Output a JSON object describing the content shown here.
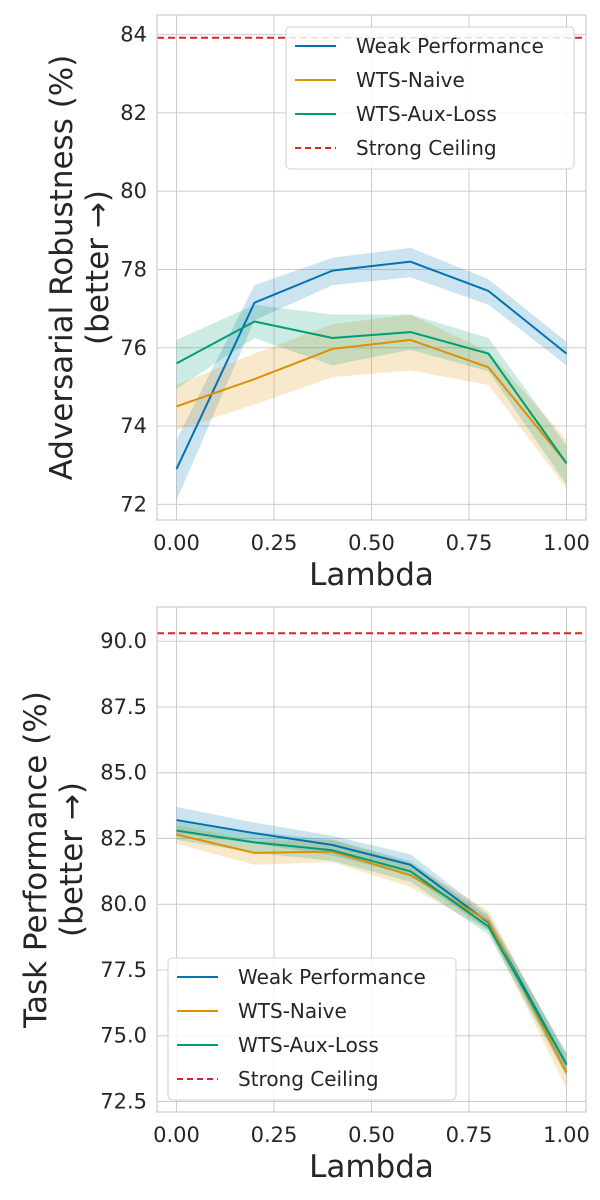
{
  "chart_data": [
    {
      "type": "line",
      "xlabel": "Lambda",
      "ylabel_lines": [
        "Adversarial Robustness (%)",
        "(better →)"
      ],
      "xlim": [
        -0.05,
        1.05
      ],
      "ylim": [
        71.6,
        84.5
      ],
      "xticks": [
        0.0,
        0.25,
        0.5,
        0.75,
        1.0
      ],
      "xtick_labels": [
        "0.00",
        "0.25",
        "0.50",
        "0.75",
        "1.00"
      ],
      "yticks": [
        72,
        74,
        76,
        78,
        80,
        82,
        84
      ],
      "ytick_labels": [
        "72",
        "74",
        "76",
        "78",
        "80",
        "82",
        "84"
      ],
      "grid": true,
      "legend_position": "top-right",
      "x": [
        0.0,
        0.2,
        0.4,
        0.6,
        0.8,
        1.0
      ],
      "series": [
        {
          "name": "Weak Performance",
          "color": "#0173b2",
          "values": [
            72.9,
            77.15,
            77.97,
            78.2,
            77.45,
            75.85
          ],
          "lower": [
            72.1,
            76.7,
            77.6,
            77.8,
            77.1,
            75.55
          ],
          "upper": [
            73.65,
            77.6,
            78.3,
            78.55,
            77.75,
            76.15
          ]
        },
        {
          "name": "WTS-Naive",
          "color": "#de8f05",
          "values": [
            74.5,
            75.2,
            75.97,
            76.2,
            75.5,
            73.05
          ],
          "lower": [
            73.9,
            74.55,
            75.25,
            75.42,
            75.05,
            72.4
          ],
          "upper": [
            75.05,
            75.85,
            76.6,
            76.85,
            75.9,
            73.65
          ]
        },
        {
          "name": "WTS-Aux-Loss",
          "color": "#029e73",
          "values": [
            75.6,
            76.67,
            76.25,
            76.4,
            75.85,
            73.05
          ],
          "lower": [
            74.95,
            76.25,
            75.55,
            75.95,
            75.4,
            72.5
          ],
          "upper": [
            76.2,
            77.1,
            76.85,
            76.85,
            76.25,
            73.5
          ]
        }
      ],
      "reference_lines": [
        {
          "name": "Strong Ceiling",
          "color": "#d62728",
          "style": "dashed",
          "value": 83.92
        }
      ]
    },
    {
      "type": "line",
      "xlabel": "Lambda",
      "ylabel_lines": [
        "Task Performance (%)",
        "(better →)"
      ],
      "xlim": [
        -0.05,
        1.05
      ],
      "ylim": [
        72.1,
        91.3
      ],
      "xticks": [
        0.0,
        0.25,
        0.5,
        0.75,
        1.0
      ],
      "xtick_labels": [
        "0.00",
        "0.25",
        "0.50",
        "0.75",
        "1.00"
      ],
      "yticks": [
        72.5,
        75.0,
        77.5,
        80.0,
        82.5,
        85.0,
        87.5,
        90.0
      ],
      "ytick_labels": [
        "72.5",
        "75.0",
        "77.5",
        "80.0",
        "82.5",
        "85.0",
        "87.5",
        "90.0"
      ],
      "grid": true,
      "legend_position": "bottom-left",
      "x": [
        0.0,
        0.2,
        0.4,
        0.6,
        0.8,
        1.0
      ],
      "series": [
        {
          "name": "Weak Performance",
          "color": "#0173b2",
          "values": [
            83.2,
            82.7,
            82.25,
            81.5,
            79.3,
            73.9
          ],
          "lower": [
            82.7,
            82.3,
            81.85,
            81.1,
            79.0,
            73.5
          ],
          "upper": [
            83.7,
            83.1,
            82.6,
            81.9,
            79.6,
            74.3
          ]
        },
        {
          "name": "WTS-Naive",
          "color": "#de8f05",
          "values": [
            82.65,
            81.95,
            82.0,
            81.1,
            79.35,
            73.6
          ],
          "lower": [
            82.3,
            81.5,
            81.6,
            80.65,
            79.0,
            73.0
          ],
          "upper": [
            83.0,
            82.4,
            82.45,
            81.55,
            79.75,
            74.2
          ]
        },
        {
          "name": "WTS-Aux-Loss",
          "color": "#029e73",
          "values": [
            82.8,
            82.35,
            82.05,
            81.25,
            79.15,
            73.9
          ],
          "lower": [
            82.45,
            81.95,
            81.65,
            80.85,
            78.85,
            73.45
          ],
          "upper": [
            83.15,
            82.75,
            82.45,
            81.65,
            79.5,
            74.35
          ]
        }
      ],
      "reference_lines": [
        {
          "name": "Strong Ceiling",
          "color": "#d62728",
          "style": "dashed",
          "value": 90.3
        }
      ]
    }
  ]
}
